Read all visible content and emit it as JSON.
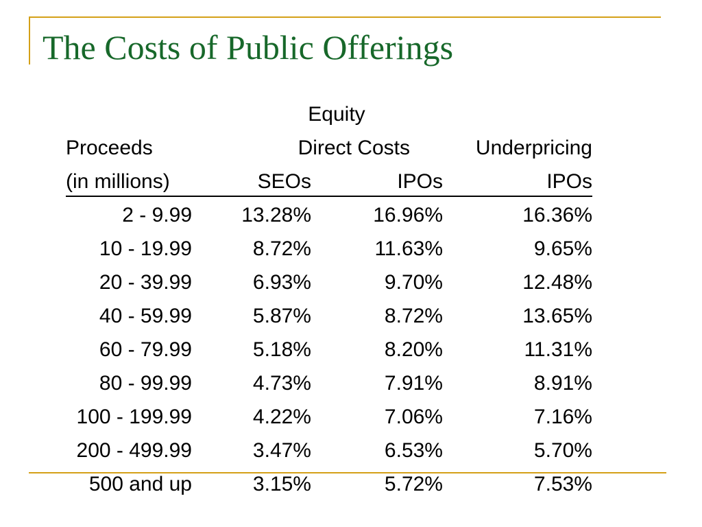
{
  "title": "The Costs of Public Offerings",
  "colors": {
    "title": "#17682a",
    "rule": "#d4a017"
  },
  "table": {
    "header": {
      "group": "Equity",
      "proceeds": "Proceeds",
      "direct_costs": "Direct Costs",
      "underpricing": "Underpricing",
      "in_millions": "(in millions)",
      "seos": "SEOs",
      "ipos_direct": "IPOs",
      "ipos_under": "IPOs"
    },
    "rows": [
      {
        "proceeds": "2 - 9.99",
        "seos": "13.28%",
        "ipos": "16.96%",
        "underpricing": "16.36%"
      },
      {
        "proceeds": "10 - 19.99",
        "seos": "8.72%",
        "ipos": "11.63%",
        "underpricing": "9.65%"
      },
      {
        "proceeds": "20 - 39.99",
        "seos": "6.93%",
        "ipos": "9.70%",
        "underpricing": "12.48%"
      },
      {
        "proceeds": "40 - 59.99",
        "seos": "5.87%",
        "ipos": "8.72%",
        "underpricing": "13.65%"
      },
      {
        "proceeds": "60 - 79.99",
        "seos": "5.18%",
        "ipos": "8.20%",
        "underpricing": "11.31%"
      },
      {
        "proceeds": "80 - 99.99",
        "seos": "4.73%",
        "ipos": "7.91%",
        "underpricing": "8.91%"
      },
      {
        "proceeds": "100 - 199.99",
        "seos": "4.22%",
        "ipos": "7.06%",
        "underpricing": "7.16%"
      },
      {
        "proceeds": "200 - 499.99",
        "seos": "3.47%",
        "ipos": "6.53%",
        "underpricing": "5.70%"
      },
      {
        "proceeds": "500 and up",
        "seos": "3.15%",
        "ipos": "5.72%",
        "underpricing": "7.53%"
      }
    ]
  }
}
